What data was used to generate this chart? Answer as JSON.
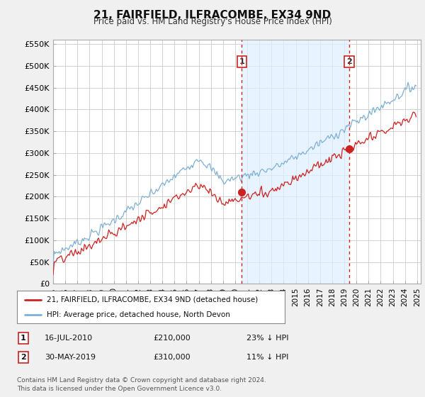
{
  "title": "21, FAIRFIELD, ILFRACOMBE, EX34 9ND",
  "subtitle": "Price paid vs. HM Land Registry's House Price Index (HPI)",
  "x_start_year": 1995,
  "x_end_year": 2025,
  "y_min": 0,
  "y_max": 560000,
  "y_ticks": [
    0,
    50000,
    100000,
    150000,
    200000,
    250000,
    300000,
    350000,
    400000,
    450000,
    500000,
    550000
  ],
  "y_tick_labels": [
    "£0",
    "£50K",
    "£100K",
    "£150K",
    "£200K",
    "£250K",
    "£300K",
    "£350K",
    "£400K",
    "£450K",
    "£500K",
    "£550K"
  ],
  "hpi_color": "#7eb0d5",
  "hpi_fill_color": "#ddeeff",
  "price_color": "#cc2222",
  "vline_color": "#cc2222",
  "vline_style": ":",
  "sale1_year": 2010.54,
  "sale1_price": 210000,
  "sale1_label": "1",
  "sale2_year": 2019.41,
  "sale2_price": 310000,
  "sale2_label": "2",
  "legend_label_price": "21, FAIRFIELD, ILFRACOMBE, EX34 9ND (detached house)",
  "legend_label_hpi": "HPI: Average price, detached house, North Devon",
  "annotation1_date": "16-JUL-2010",
  "annotation1_price": "£210,000",
  "annotation1_pct": "23% ↓ HPI",
  "annotation2_date": "30-MAY-2019",
  "annotation2_price": "£310,000",
  "annotation2_pct": "11% ↓ HPI",
  "footnote": "Contains HM Land Registry data © Crown copyright and database right 2024.\nThis data is licensed under the Open Government Licence v3.0.",
  "bg_color": "#f0f0f0",
  "plot_bg_color": "#ffffff",
  "grid_color": "#cccccc",
  "legend_border_color": "#888888",
  "title_fontsize": 11,
  "subtitle_fontsize": 8.5,
  "tick_fontsize": 8,
  "x_tick_fontsize": 7.5
}
